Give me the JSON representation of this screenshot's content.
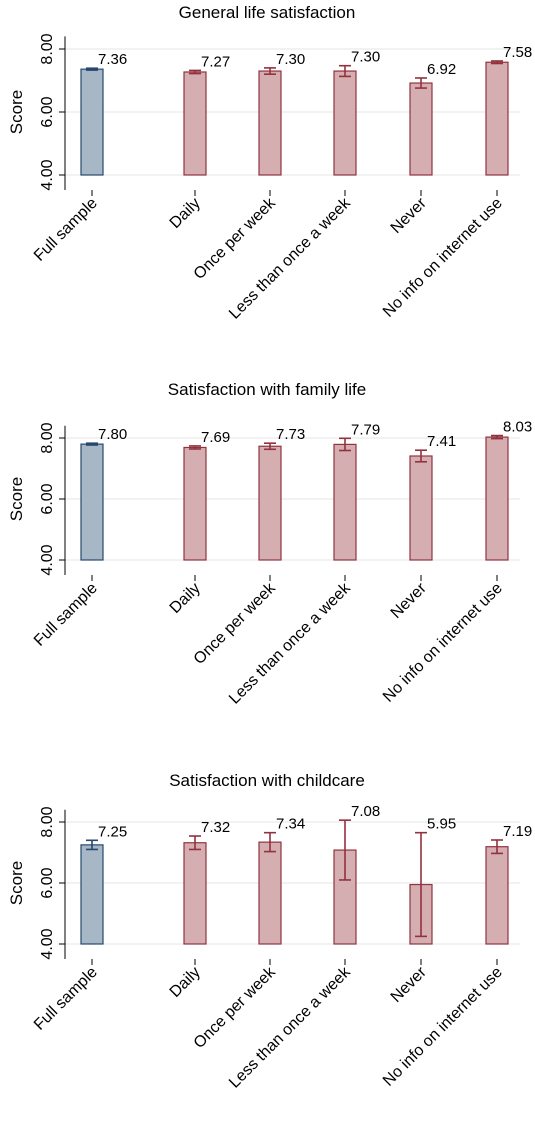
{
  "chart_data": [
    {
      "type": "bar",
      "title": "General life satisfaction",
      "ylabel": "Score",
      "ylim": [
        4,
        8.4
      ],
      "yticks": [
        "4.00",
        "6.00",
        "8.00"
      ],
      "categories": [
        "Full sample",
        "Daily",
        "Once per week",
        "Less than once a week",
        "Never",
        "No info on internet use"
      ],
      "values": [
        7.36,
        7.27,
        7.3,
        7.3,
        6.92,
        7.58
      ],
      "labels": [
        "7.36",
        "7.27",
        "7.30",
        "7.30",
        "6.92",
        "7.58"
      ],
      "ci_low": [
        7.33,
        7.22,
        7.2,
        7.13,
        6.76,
        7.54
      ],
      "ci_high": [
        7.39,
        7.32,
        7.4,
        7.47,
        7.08,
        7.62
      ],
      "grid": true
    },
    {
      "type": "bar",
      "title": "Satisfaction with family life",
      "ylabel": "Score",
      "ylim": [
        4,
        8.4
      ],
      "yticks": [
        "4.00",
        "6.00",
        "8.00"
      ],
      "categories": [
        "Full sample",
        "Daily",
        "Once per week",
        "Less than once a week",
        "Never",
        "No info on internet use"
      ],
      "values": [
        7.8,
        7.69,
        7.73,
        7.79,
        7.41,
        8.03
      ],
      "labels": [
        "7.80",
        "7.69",
        "7.73",
        "7.79",
        "7.41",
        "8.03"
      ],
      "ci_low": [
        7.77,
        7.64,
        7.63,
        7.59,
        7.22,
        7.98
      ],
      "ci_high": [
        7.83,
        7.74,
        7.83,
        7.99,
        7.6,
        8.08
      ],
      "grid": true
    },
    {
      "type": "bar",
      "title": "Satisfaction with childcare",
      "ylabel": "Score",
      "ylim": [
        4,
        8.4
      ],
      "yticks": [
        "4.00",
        "6.00",
        "8.00"
      ],
      "categories": [
        "Full sample",
        "Daily",
        "Once per week",
        "Less than once a week",
        "Never",
        "No info on internet use"
      ],
      "values": [
        7.25,
        7.32,
        7.34,
        7.08,
        5.95,
        7.19
      ],
      "labels": [
        "7.25",
        "7.32",
        "7.34",
        "7.08",
        "5.95",
        "7.19"
      ],
      "ci_low": [
        7.1,
        7.1,
        7.03,
        6.1,
        4.25,
        6.97
      ],
      "ci_high": [
        7.4,
        7.54,
        7.65,
        8.06,
        7.65,
        7.41
      ],
      "grid": true
    }
  ],
  "colors": {
    "full_sample_fill": "#a7b7c6",
    "full_sample_stroke": "#26496d",
    "group_fill": "#d5aeb1",
    "group_stroke": "#92323e",
    "grid": "#e6e6e6"
  }
}
